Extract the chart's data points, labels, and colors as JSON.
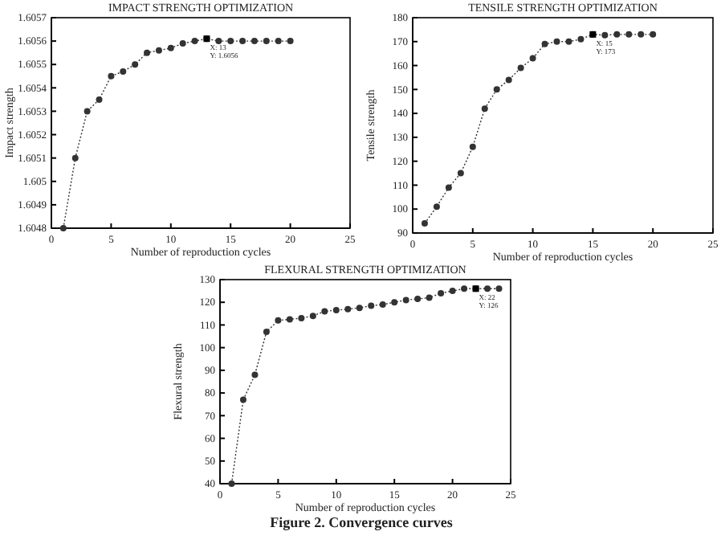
{
  "chart_data": [
    {
      "type": "line",
      "title": "IMPACT STRENGTH OPTIMIZATION",
      "xlabel": "Number of reproduction cycles",
      "ylabel": "Impact strength",
      "x": [
        1,
        2,
        3,
        4,
        5,
        6,
        7,
        8,
        9,
        10,
        11,
        12,
        13,
        14,
        15,
        16,
        17,
        18,
        19,
        20
      ],
      "values": [
        1.6048,
        1.6051,
        1.6053,
        1.60535,
        1.60545,
        1.60547,
        1.6055,
        1.60555,
        1.60556,
        1.60557,
        1.60559,
        1.6056,
        1.60561,
        1.6056,
        1.6056,
        1.6056,
        1.6056,
        1.6056,
        1.6056,
        1.6056
      ],
      "color": "#333333",
      "marker": "circle",
      "line_style": "dotted",
      "xlim": [
        0,
        25
      ],
      "xticks": [
        0,
        5,
        10,
        15,
        20,
        25
      ],
      "ylim": [
        1.6048,
        1.6057
      ],
      "yticks": [
        1.6048,
        1.6049,
        1.605,
        1.6051,
        1.6052,
        1.6053,
        1.6054,
        1.6055,
        1.6056,
        1.6057
      ],
      "annotations": [
        {
          "text": "X: 13\nY: 1.6056",
          "x": 13,
          "y": 1.60561
        }
      ]
    },
    {
      "type": "line",
      "title": "TENSILE STRENGTH OPTIMIZATION",
      "xlabel": "Number of reproduction cycles",
      "ylabel": "Tensile strength",
      "x": [
        1,
        2,
        3,
        4,
        5,
        6,
        7,
        8,
        9,
        10,
        11,
        12,
        13,
        14,
        15,
        16,
        17,
        18,
        19,
        20
      ],
      "values": [
        94,
        101,
        109,
        115,
        126,
        142,
        150,
        154,
        159,
        163,
        169,
        170,
        170,
        171,
        173,
        172.7,
        173,
        173,
        173,
        173
      ],
      "color": "#333333",
      "marker": "circle",
      "line_style": "dotted",
      "xlim": [
        0,
        25
      ],
      "xticks": [
        0,
        5,
        10,
        15,
        20,
        25
      ],
      "ylim": [
        90,
        180
      ],
      "yticks": [
        90,
        100,
        110,
        120,
        130,
        140,
        150,
        160,
        170,
        180
      ],
      "annotations": [
        {
          "text": "X: 15\nY: 173",
          "x": 15,
          "y": 173
        }
      ]
    },
    {
      "type": "line",
      "title": "FLEXURAL STRENGTH OPTIMIZATION",
      "xlabel": "Number of reproduction cycles",
      "ylabel": "Flexural strength",
      "x": [
        1,
        2,
        3,
        4,
        5,
        6,
        7,
        8,
        9,
        10,
        11,
        12,
        13,
        14,
        15,
        16,
        17,
        18,
        19,
        20,
        21,
        22,
        23,
        24
      ],
      "values": [
        40,
        77,
        88,
        107,
        112,
        112.5,
        113,
        114,
        116,
        116.5,
        117,
        117.5,
        118.5,
        119,
        120,
        121,
        121.5,
        122,
        124,
        125,
        126,
        126,
        126,
        126
      ],
      "color": "#333333",
      "marker": "circle",
      "line_style": "dotted",
      "xlim": [
        0,
        25
      ],
      "xticks": [
        0,
        5,
        10,
        15,
        20,
        25
      ],
      "ylim": [
        40,
        130
      ],
      "yticks": [
        40,
        50,
        60,
        70,
        80,
        90,
        100,
        110,
        120,
        130
      ],
      "annotations": [
        {
          "text": "X: 22\nY: 126",
          "x": 22,
          "y": 126
        },
        "Figure 2. Convergence curves"
      ]
    }
  ]
}
